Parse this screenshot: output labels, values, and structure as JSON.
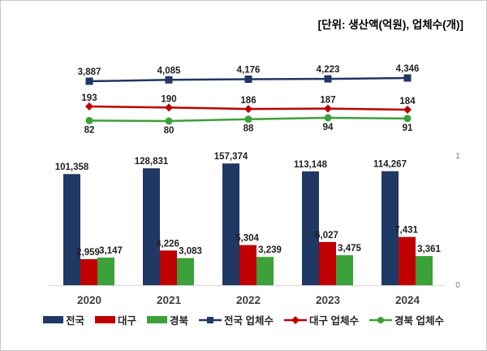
{
  "title": "[단위: 생산액(억원), 업체수(개)]",
  "colors": {
    "navy": "#1f3864",
    "red": "#c00000",
    "green": "#3ba138",
    "axis_line": "#d9d9d9",
    "tick_text": "#7f7f7f",
    "xlabel_text": "#3f3f3f",
    "data_label_text": "#1f1f1f",
    "legend_text": "#262626",
    "frame_border": "#c9c9c9"
  },
  "chart_data": {
    "type": "combo-bar-line",
    "title": "[단위: 생산액(억원), 업체수(개)]",
    "categories": [
      "2020",
      "2021",
      "2022",
      "2023",
      "2024"
    ],
    "bar_series": [
      {
        "key": "jeonguk",
        "name": "전국",
        "color": "navy",
        "values": [
          101358,
          128831,
          157374,
          113148,
          114267
        ]
      },
      {
        "key": "daegu",
        "name": "대구",
        "color": "red",
        "values": [
          2959,
          4226,
          5304,
          6027,
          7431
        ]
      },
      {
        "key": "gyeongbuk",
        "name": "경북",
        "color": "green",
        "values": [
          3147,
          3083,
          3239,
          3475,
          3361
        ]
      }
    ],
    "line_series": [
      {
        "key": "jeonguk-upchesu",
        "name": "전국 업체수",
        "color": "navy",
        "marker": "square",
        "values": [
          3887,
          4085,
          4176,
          4223,
          4346
        ]
      },
      {
        "key": "daegu-upchesu",
        "name": "대구 업체수",
        "color": "red",
        "marker": "diamond",
        "values": [
          193,
          190,
          186,
          187,
          184
        ]
      },
      {
        "key": "gyeongbuk-upchesu",
        "name": "경북 업체수",
        "color": "green",
        "marker": "circle",
        "values": [
          82,
          80,
          88,
          94,
          91
        ]
      }
    ],
    "secondary_axis": {
      "ticks": [
        "1",
        "0"
      ]
    },
    "grid": "off",
    "legend_position": "bottom",
    "data_labels": "on"
  },
  "legend": {
    "items": [
      {
        "key": "jeonguk",
        "label": "전국",
        "type": "bar",
        "color": "navy"
      },
      {
        "key": "daegu",
        "label": "대구",
        "type": "bar",
        "color": "red"
      },
      {
        "key": "gyeongbuk",
        "label": "경북",
        "type": "bar",
        "color": "green"
      },
      {
        "key": "jeonguk-upchesu",
        "label": "전국 업체수",
        "type": "line",
        "marker": "square",
        "color": "navy"
      },
      {
        "key": "daegu-upchesu",
        "label": "대구 업체수",
        "type": "line",
        "marker": "diamond",
        "color": "red"
      },
      {
        "key": "gyeongbuk-upchesu",
        "label": "경북 업체수",
        "type": "line",
        "marker": "circle",
        "color": "green"
      }
    ]
  }
}
